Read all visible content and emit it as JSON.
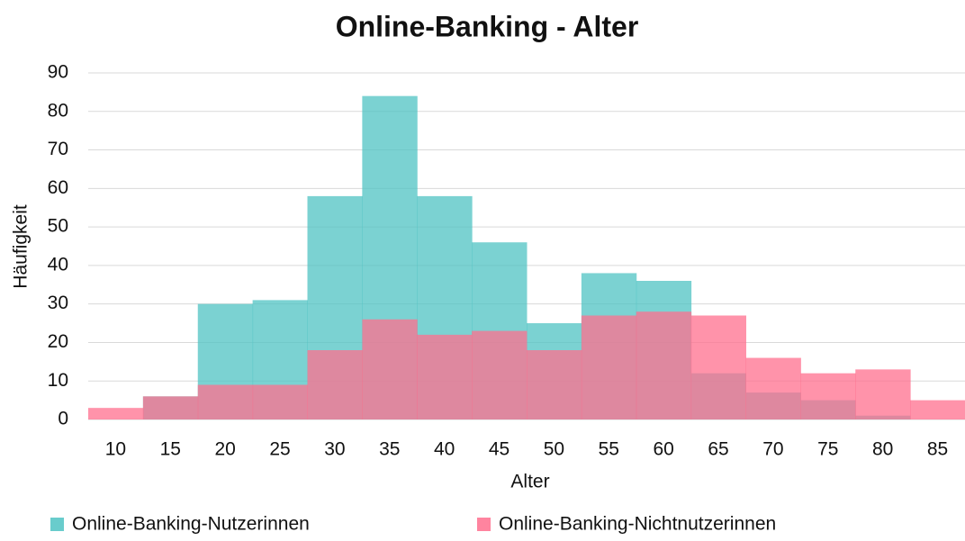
{
  "chart_data": {
    "type": "bar",
    "title": "Online-Banking - Alter",
    "x_label": "Alter",
    "y_label": "Häufigkeit",
    "categories": [
      "10",
      "15",
      "20",
      "25",
      "30",
      "35",
      "40",
      "45",
      "50",
      "55",
      "60",
      "65",
      "70",
      "75",
      "80",
      "85"
    ],
    "series": [
      {
        "name": "Online-Banking-Nutzerinnen",
        "color": "#4fc3c3",
        "values": [
          0,
          6,
          30,
          31,
          58,
          84,
          58,
          46,
          25,
          38,
          36,
          12,
          7,
          5,
          1,
          0
        ]
      },
      {
        "name": "Online-Banking-Nichtnutzerinnen",
        "color": "#ff6f8e",
        "values": [
          3,
          6,
          9,
          9,
          18,
          26,
          22,
          23,
          18,
          27,
          28,
          27,
          16,
          12,
          13,
          5
        ]
      }
    ],
    "ylim": [
      0,
      90
    ],
    "yticks": [
      0,
      10,
      20,
      30,
      40,
      50,
      60,
      70,
      80,
      90
    ],
    "grid": true,
    "legend": "bottom"
  }
}
